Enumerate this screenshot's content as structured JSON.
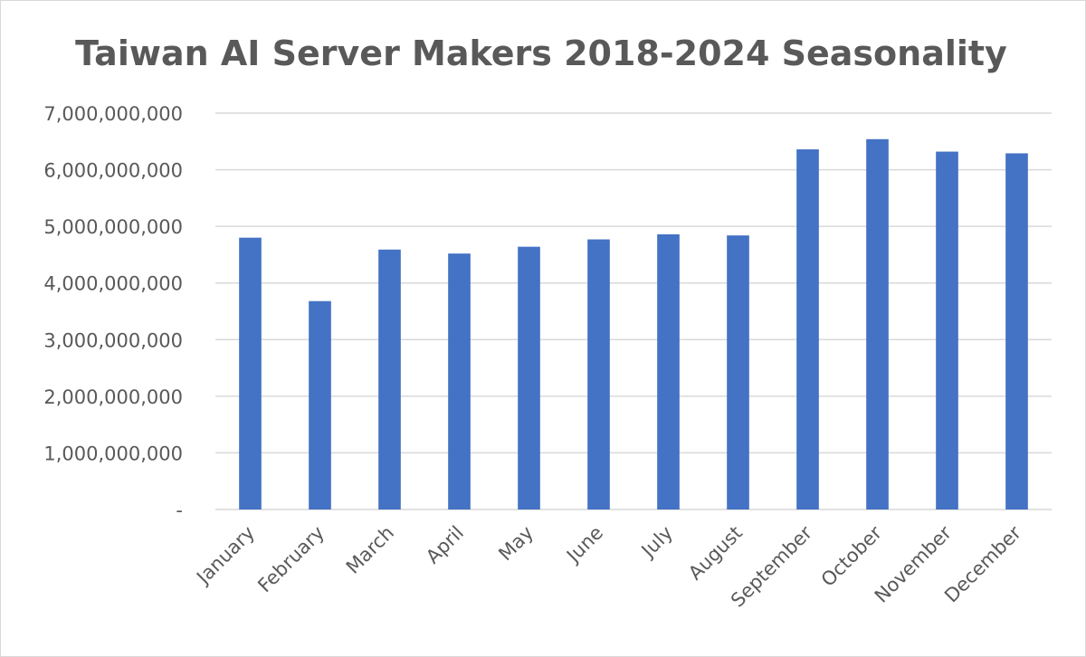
{
  "chart_data": {
    "type": "bar",
    "title": "Taiwan AI Server Makers 2018-2024 Seasonality",
    "xlabel": "",
    "ylabel": "",
    "categories": [
      "January",
      "February",
      "March",
      "April",
      "May",
      "June",
      "July",
      "August",
      "September",
      "October",
      "November",
      "December"
    ],
    "values": [
      4800000000,
      3680000000,
      4590000000,
      4520000000,
      4640000000,
      4770000000,
      4860000000,
      4840000000,
      6360000000,
      6540000000,
      6320000000,
      6290000000
    ],
    "ylim": [
      0,
      7000000000
    ],
    "yticks": [
      0,
      1000000000,
      2000000000,
      3000000000,
      4000000000,
      5000000000,
      6000000000,
      7000000000
    ],
    "ytick_labels": [
      "-",
      "1,000,000,000",
      "2,000,000,000",
      "3,000,000,000",
      "4,000,000,000",
      "5,000,000,000",
      "6,000,000,000",
      "7,000,000,000"
    ],
    "grid": true,
    "legend": "none",
    "bar_color": "#4472C4"
  }
}
